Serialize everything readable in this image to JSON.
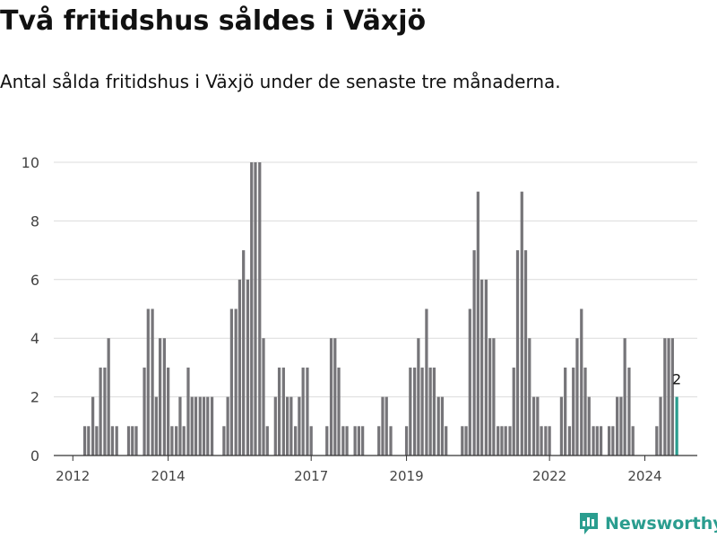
{
  "title": "Två fritidshus såldes i Växjö",
  "subtitle": "Antal sålda fritidshus i Växjö under de senaste tre månaderna.",
  "brand": {
    "name": "Newsworthy",
    "logo_icon": "bar-chart-logo-icon"
  },
  "colors": {
    "bar": "#767579",
    "highlight": "#2a9d8f",
    "grid": "#dcdcdc",
    "axis": "#333333"
  },
  "chart_data": {
    "type": "bar",
    "ylim": [
      0,
      10
    ],
    "yticks": [
      0,
      2,
      4,
      6,
      8,
      10
    ],
    "xrange": [
      2011.6,
      2025.1
    ],
    "xticks": [
      {
        "value": 2012.0,
        "label": "2012"
      },
      {
        "value": 2014.0,
        "label": "2014"
      },
      {
        "value": 2017.0,
        "label": "2017"
      },
      {
        "value": 2019.0,
        "label": "2019"
      },
      {
        "value": 2022.0,
        "label": "2022"
      },
      {
        "value": 2024.0,
        "label": "2024"
      }
    ],
    "grid": true,
    "highlight": {
      "value": 2,
      "label": "2"
    },
    "series": [
      {
        "values": [
          [
            2012.25,
            1
          ],
          [
            2012.33,
            1
          ],
          [
            2012.42,
            2
          ],
          [
            2012.5,
            1
          ],
          [
            2012.58,
            3
          ],
          [
            2012.67,
            3
          ],
          [
            2012.75,
            4
          ],
          [
            2012.83,
            1
          ],
          [
            2012.92,
            1
          ],
          [
            2013.17,
            1
          ],
          [
            2013.25,
            1
          ],
          [
            2013.33,
            1
          ],
          [
            2013.5,
            3
          ],
          [
            2013.58,
            5
          ],
          [
            2013.67,
            5
          ],
          [
            2013.75,
            2
          ],
          [
            2013.83,
            4
          ],
          [
            2013.92,
            4
          ],
          [
            2014.0,
            3
          ],
          [
            2014.08,
            1
          ],
          [
            2014.17,
            1
          ],
          [
            2014.25,
            2
          ],
          [
            2014.33,
            1
          ],
          [
            2014.42,
            3
          ],
          [
            2014.5,
            2
          ],
          [
            2014.58,
            2
          ],
          [
            2014.67,
            2
          ],
          [
            2014.75,
            2
          ],
          [
            2014.83,
            2
          ],
          [
            2014.92,
            2
          ],
          [
            2015.17,
            1
          ],
          [
            2015.25,
            2
          ],
          [
            2015.33,
            5
          ],
          [
            2015.42,
            5
          ],
          [
            2015.5,
            6
          ],
          [
            2015.58,
            7
          ],
          [
            2015.67,
            6
          ],
          [
            2015.75,
            10
          ],
          [
            2015.83,
            10
          ],
          [
            2015.92,
            10
          ],
          [
            2016.0,
            4
          ],
          [
            2016.08,
            1
          ],
          [
            2016.25,
            2
          ],
          [
            2016.33,
            3
          ],
          [
            2016.42,
            3
          ],
          [
            2016.5,
            2
          ],
          [
            2016.58,
            2
          ],
          [
            2016.67,
            1
          ],
          [
            2016.75,
            2
          ],
          [
            2016.83,
            3
          ],
          [
            2016.92,
            3
          ],
          [
            2017.0,
            1
          ],
          [
            2017.33,
            1
          ],
          [
            2017.42,
            4
          ],
          [
            2017.5,
            4
          ],
          [
            2017.58,
            3
          ],
          [
            2017.67,
            1
          ],
          [
            2017.75,
            1
          ],
          [
            2017.92,
            1
          ],
          [
            2018.0,
            1
          ],
          [
            2018.08,
            1
          ],
          [
            2018.42,
            1
          ],
          [
            2018.5,
            2
          ],
          [
            2018.58,
            2
          ],
          [
            2018.67,
            1
          ],
          [
            2019.0,
            1
          ],
          [
            2019.08,
            3
          ],
          [
            2019.17,
            3
          ],
          [
            2019.25,
            4
          ],
          [
            2019.33,
            3
          ],
          [
            2019.42,
            5
          ],
          [
            2019.5,
            3
          ],
          [
            2019.58,
            3
          ],
          [
            2019.67,
            2
          ],
          [
            2019.75,
            2
          ],
          [
            2019.83,
            1
          ],
          [
            2020.17,
            1
          ],
          [
            2020.25,
            1
          ],
          [
            2020.33,
            5
          ],
          [
            2020.42,
            7
          ],
          [
            2020.5,
            9
          ],
          [
            2020.58,
            6
          ],
          [
            2020.67,
            6
          ],
          [
            2020.75,
            4
          ],
          [
            2020.83,
            4
          ],
          [
            2020.92,
            1
          ],
          [
            2021.0,
            1
          ],
          [
            2021.08,
            1
          ],
          [
            2021.17,
            1
          ],
          [
            2021.25,
            3
          ],
          [
            2021.33,
            7
          ],
          [
            2021.42,
            9
          ],
          [
            2021.5,
            7
          ],
          [
            2021.58,
            4
          ],
          [
            2021.67,
            2
          ],
          [
            2021.75,
            2
          ],
          [
            2021.83,
            1
          ],
          [
            2021.92,
            1
          ],
          [
            2022.0,
            1
          ],
          [
            2022.25,
            2
          ],
          [
            2022.33,
            3
          ],
          [
            2022.42,
            1
          ],
          [
            2022.5,
            3
          ],
          [
            2022.58,
            4
          ],
          [
            2022.67,
            5
          ],
          [
            2022.75,
            3
          ],
          [
            2022.83,
            2
          ],
          [
            2022.92,
            1
          ],
          [
            2023.0,
            1
          ],
          [
            2023.08,
            1
          ],
          [
            2023.25,
            1
          ],
          [
            2023.33,
            1
          ],
          [
            2023.42,
            2
          ],
          [
            2023.5,
            2
          ],
          [
            2023.58,
            4
          ],
          [
            2023.67,
            3
          ],
          [
            2023.75,
            1
          ],
          [
            2024.25,
            1
          ],
          [
            2024.33,
            2
          ],
          [
            2024.42,
            4
          ],
          [
            2024.5,
            4
          ],
          [
            2024.58,
            4
          ],
          [
            2024.67,
            2
          ]
        ]
      }
    ]
  }
}
